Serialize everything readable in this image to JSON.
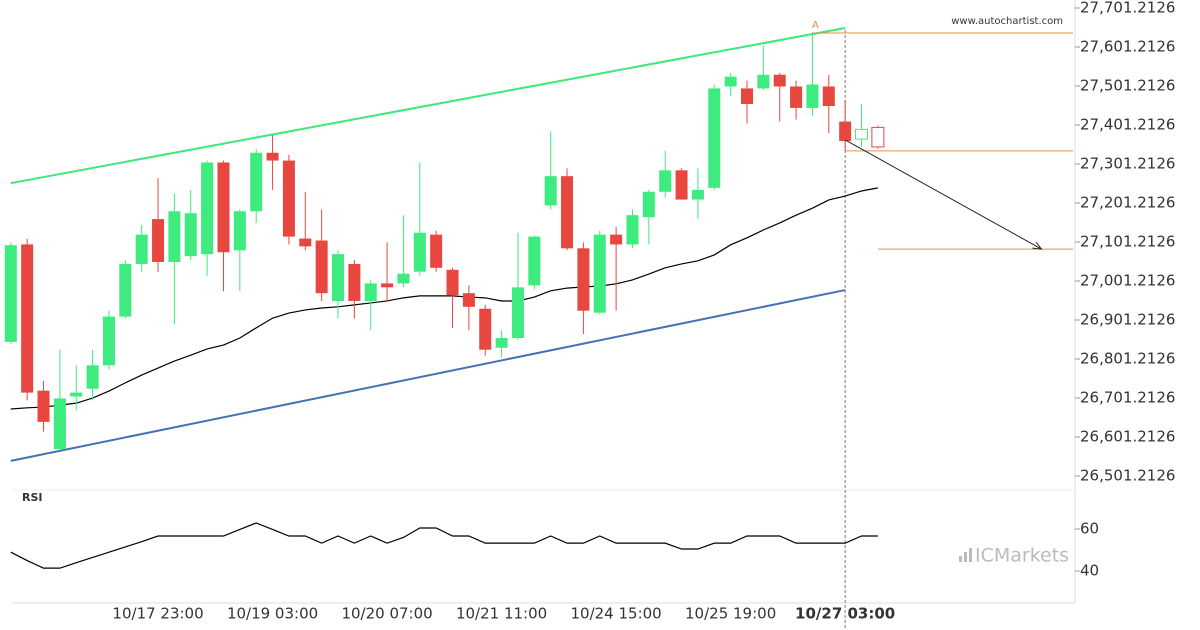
{
  "chart_data": {
    "type": "candlestick",
    "watermark": "www.autochartist.com",
    "brand": "ICMarkets",
    "categories": [
      null,
      null,
      null,
      null,
      null,
      null,
      null,
      null,
      null,
      "10/17 23:00",
      null,
      null,
      null,
      null,
      null,
      null,
      "10/19 03:00",
      null,
      null,
      null,
      null,
      null,
      null,
      "10/20 07:00",
      null,
      null,
      null,
      null,
      null,
      null,
      "10/21 11:00",
      null,
      null,
      null,
      null,
      null,
      null,
      "10/24 15:00",
      null,
      null,
      null,
      null,
      null,
      null,
      "10/25 19:00",
      null,
      null,
      null,
      null,
      null,
      null,
      "10/27 03:00",
      null,
      null
    ],
    "open": [
      26845,
      27095,
      26720,
      26570,
      26705,
      26725,
      26785,
      26910,
      27045,
      27160,
      27050,
      27065,
      27070,
      27305,
      27080,
      27180,
      27330,
      27310,
      27110,
      27105,
      26950,
      27045,
      26950,
      26995,
      26995,
      27025,
      27120,
      27030,
      26970,
      26930,
      26830,
      26855,
      26990,
      27195,
      27270,
      27085,
      26920,
      27120,
      27095,
      27165,
      27230,
      27285,
      27210,
      27240,
      27500,
      27495,
      27495,
      27530,
      27500,
      27445,
      27500,
      27410,
      27365,
      27395
    ],
    "high": [
      27100,
      27110,
      26745,
      26825,
      26785,
      26825,
      26925,
      27055,
      27145,
      27265,
      27225,
      27235,
      27310,
      27310,
      27185,
      27340,
      27375,
      27325,
      27230,
      27185,
      27080,
      27055,
      27005,
      27100,
      27170,
      27305,
      27130,
      27035,
      26990,
      26940,
      26875,
      27125,
      27118,
      27385,
      27290,
      27100,
      27130,
      27140,
      27185,
      27235,
      27335,
      27290,
      27290,
      27505,
      27535,
      27515,
      27605,
      27535,
      27515,
      27640,
      27530,
      27465,
      27455,
      27400
    ],
    "low": [
      26840,
      26695,
      26615,
      26570,
      26670,
      26695,
      26775,
      26905,
      27025,
      27025,
      26890,
      27055,
      27015,
      26975,
      26975,
      27150,
      27235,
      27095,
      27080,
      26950,
      26905,
      26905,
      26875,
      26950,
      26985,
      27015,
      27025,
      26880,
      26875,
      26810,
      26805,
      26850,
      26980,
      27185,
      27080,
      26865,
      26915,
      26925,
      27085,
      27095,
      27215,
      27210,
      27160,
      27235,
      27475,
      27405,
      27490,
      27410,
      27415,
      27425,
      27380,
      27335,
      27345,
      27340
    ],
    "close": [
      27093,
      26715,
      26640,
      26700,
      26715,
      26785,
      26910,
      27045,
      27120,
      27050,
      27180,
      27175,
      27305,
      27075,
      27180,
      27330,
      27310,
      27115,
      27090,
      26970,
      27070,
      26950,
      26995,
      26985,
      27020,
      27125,
      27035,
      26965,
      26935,
      26825,
      26855,
      26985,
      27115,
      27270,
      27085,
      26925,
      27120,
      27095,
      27170,
      27230,
      27285,
      27210,
      27235,
      27495,
      27525,
      27455,
      27530,
      27500,
      27445,
      27505,
      27450,
      27360,
      27390,
      27345
    ],
    "up_color": "#3deb7f",
    "down_color": "#e8473f",
    "hollow_from": 52,
    "ma": {
      "color": "#000000",
      "values": [
        26673,
        26676,
        26678,
        26683,
        26688,
        26701,
        26719,
        26740,
        26760,
        26778,
        26796,
        26811,
        26827,
        26837,
        26855,
        26881,
        26906,
        26919,
        26927,
        26932,
        26935,
        26940,
        26945,
        26950,
        26958,
        26963,
        26963,
        26963,
        26960,
        26958,
        26950,
        26950,
        26960,
        26976,
        26983,
        26986,
        26988,
        26994,
        27004,
        27019,
        27035,
        27045,
        27053,
        27068,
        27094,
        27112,
        27132,
        27150,
        27170,
        27188,
        27209,
        27219,
        27232,
        27240
      ]
    },
    "ylim": [
      26465.3,
      27721.7
    ],
    "yticks": [
      {
        "value": 27701.2126,
        "label": "27,701.2126"
      },
      {
        "value": 27601.2126,
        "label": "27,601.2126"
      },
      {
        "value": 27501.2126,
        "label": "27,501.2126"
      },
      {
        "value": 27401.2126,
        "label": "27,401.2126"
      },
      {
        "value": 27301.2126,
        "label": "27,301.2126"
      },
      {
        "value": 27201.2126,
        "label": "27,201.2126"
      },
      {
        "value": 27101.2126,
        "label": "27,101.2126"
      },
      {
        "value": 27001.2126,
        "label": "27,001.2126"
      },
      {
        "value": 26901.2126,
        "label": "26,901.2126"
      },
      {
        "value": 26801.2126,
        "label": "26,801.2126"
      },
      {
        "value": 26701.2126,
        "label": "26,701.2126"
      },
      {
        "value": 26601.2126,
        "label": "26,601.2126"
      },
      {
        "value": 26501.2126,
        "label": "26,501.2126"
      }
    ],
    "trend_lines": [
      {
        "color": "#3ee87a",
        "x": [
          0,
          51
        ],
        "values": [
          27252,
          27650
        ]
      },
      {
        "color": "#4472b4",
        "x": [
          0,
          51
        ],
        "values": [
          26540,
          26978
        ]
      }
    ],
    "levels": [
      {
        "color": "#e0904a",
        "from": 49,
        "value": 27637
      },
      {
        "color": "#e0904a",
        "from": 51,
        "value": 27335
      },
      {
        "color": "#e0904a",
        "from": 53,
        "value": 27083
      }
    ],
    "arrow": {
      "color": "#222222",
      "x": [
        51,
        63
      ],
      "values": [
        27363,
        27083
      ]
    },
    "point": {
      "label": "A",
      "x": 49,
      "value": 27655,
      "color": "#e0904a"
    },
    "marker_index": 51,
    "rsi": {
      "label": "RSI",
      "color": "#000000",
      "ylim": [
        24.8,
        78.6
      ],
      "yticks": [
        60,
        40
      ],
      "values": [
        49,
        45,
        41.4,
        41.4,
        44,
        46.5,
        49,
        51.5,
        54,
        56.7,
        56.7,
        56.7,
        56.7,
        56.7,
        59.8,
        62.9,
        59.8,
        56.7,
        56.7,
        53.3,
        56.7,
        53.3,
        56.7,
        53.3,
        56,
        60.5,
        60.5,
        56.7,
        56.7,
        53.3,
        53.3,
        53.3,
        53.3,
        56.7,
        53.3,
        53.3,
        56.7,
        53.3,
        53.3,
        53.3,
        53.3,
        50.5,
        50.5,
        53.3,
        53.3,
        56.7,
        56.7,
        56.7,
        53.3,
        53.3,
        53.3,
        53.3,
        56.7,
        56.7
      ]
    }
  }
}
